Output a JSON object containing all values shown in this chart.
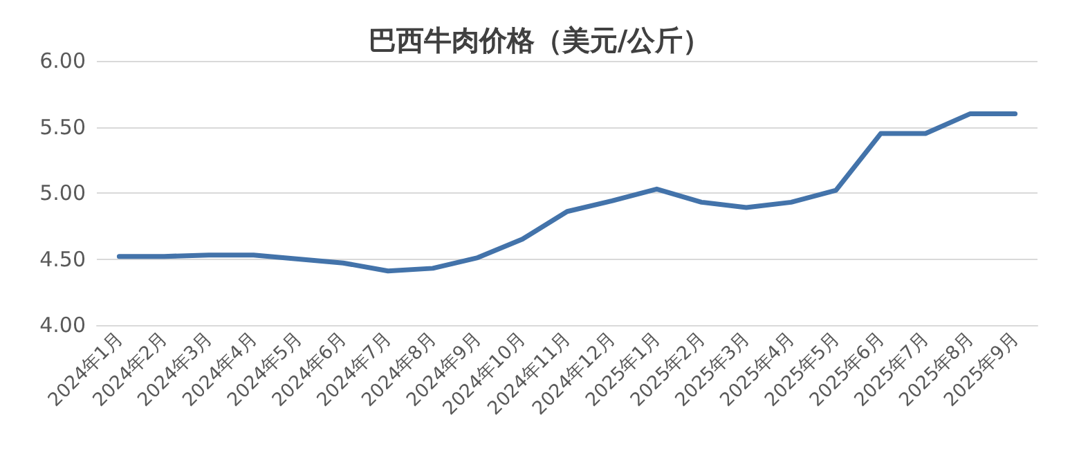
{
  "chart_data": {
    "type": "line",
    "title": "巴西牛肉价格（美元/公斤）",
    "categories": [
      "2024年1月",
      "2024年2月",
      "2024年3月",
      "2024年4月",
      "2024年5月",
      "2024年6月",
      "2024年7月",
      "2024年8月",
      "2024年9月",
      "2024年10月",
      "2024年11月",
      "2024年12月",
      "2025年1月",
      "2025年2月",
      "2025年3月",
      "2025年4月",
      "2025年5月",
      "2025年6月",
      "2025年7月",
      "2025年8月",
      "2025年9月"
    ],
    "series": [
      {
        "color": "#4373aa",
        "values": [
          4.52,
          4.52,
          4.53,
          4.53,
          4.5,
          4.47,
          4.41,
          4.43,
          4.51,
          4.65,
          4.86,
          4.94,
          5.03,
          4.93,
          4.89,
          4.93,
          5.02,
          5.45,
          5.45,
          5.6,
          5.6
        ]
      }
    ],
    "ylim": [
      4,
      6
    ],
    "yticks": [
      {
        "value": 4,
        "label": "4.00"
      },
      {
        "value": 4.5,
        "label": "4.50"
      },
      {
        "value": 5,
        "label": "5.00"
      },
      {
        "value": 5.5,
        "label": "5.50"
      },
      {
        "value": 6,
        "label": "6.00"
      }
    ],
    "grid": "y",
    "marker": "none",
    "line_style": "solid"
  }
}
